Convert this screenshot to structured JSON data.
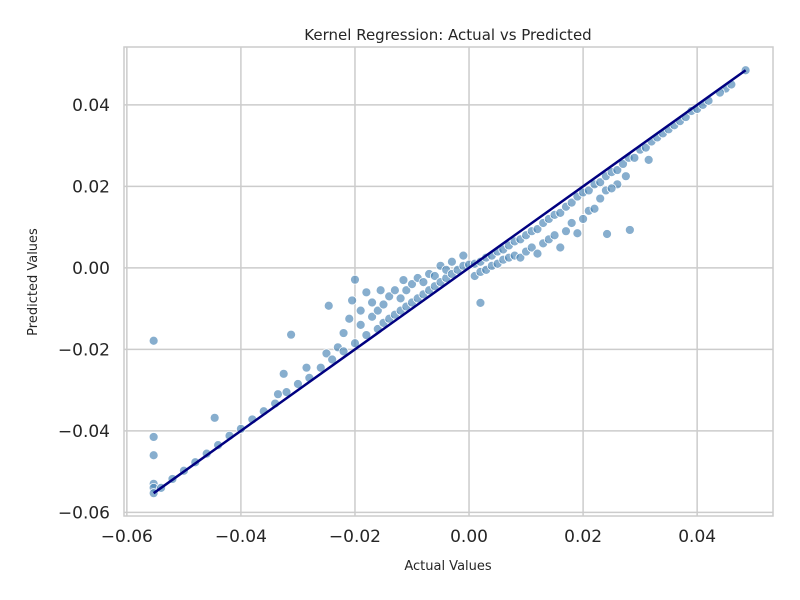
{
  "chart_data": {
    "type": "scatter",
    "title": "Kernel Regression: Actual vs Predicted",
    "xlabel": "Actual Values",
    "ylabel": "Predicted Values",
    "xlim": [
      -0.0605,
      0.0533
    ],
    "ylim": [
      -0.0609,
      0.0542
    ],
    "xticks": [
      -0.06,
      -0.04,
      -0.02,
      0.0,
      0.02,
      0.04
    ],
    "xtick_labels": [
      "−0.06",
      "−0.04",
      "−0.02",
      "0.00",
      "0.02",
      "0.04"
    ],
    "yticks": [
      -0.06,
      -0.04,
      -0.02,
      0.0,
      0.02,
      0.04
    ],
    "ytick_labels": [
      "−0.06",
      "−0.04",
      "−0.02",
      "0.00",
      "0.02",
      "0.04"
    ],
    "grid": true,
    "colors": {
      "points": "#4682b4",
      "line": "#000080",
      "grid": "#cccccc"
    },
    "reference_line": {
      "x": [
        -0.0553,
        0.0485
      ],
      "y": [
        -0.0553,
        0.0485
      ]
    },
    "points": [
      [
        -0.0553,
        -0.0179
      ],
      [
        -0.0553,
        -0.0415
      ],
      [
        -0.0553,
        -0.046
      ],
      [
        -0.0553,
        -0.053
      ],
      [
        -0.0553,
        -0.054
      ],
      [
        -0.0446,
        -0.0368
      ],
      [
        -0.0312,
        -0.0164
      ],
      [
        -0.0325,
        -0.026
      ],
      [
        -0.0246,
        -0.0093
      ],
      [
        -0.02,
        -0.0029
      ],
      [
        0.002,
        -0.0086
      ],
      [
        0.0282,
        0.0093
      ],
      [
        0.0242,
        0.0083
      ],
      [
        0.026,
        0.0205
      ],
      [
        0.0275,
        0.0225
      ],
      [
        0.0315,
        0.0265
      ],
      [
        0.045,
        0.044
      ],
      [
        -0.0553,
        -0.0553
      ],
      [
        -0.054,
        -0.054
      ],
      [
        -0.052,
        -0.0518
      ],
      [
        -0.05,
        -0.0498
      ],
      [
        -0.048,
        -0.0477
      ],
      [
        -0.046,
        -0.0456
      ],
      [
        -0.044,
        -0.0435
      ],
      [
        -0.042,
        -0.0412
      ],
      [
        -0.04,
        -0.0395
      ],
      [
        -0.038,
        -0.0372
      ],
      [
        -0.036,
        -0.0352
      ],
      [
        -0.034,
        -0.0333
      ],
      [
        -0.0335,
        -0.031
      ],
      [
        -0.032,
        -0.0305
      ],
      [
        -0.03,
        -0.0285
      ],
      [
        -0.028,
        -0.027
      ],
      [
        -0.0285,
        -0.0245
      ],
      [
        -0.026,
        -0.0245
      ],
      [
        -0.025,
        -0.021
      ],
      [
        -0.024,
        -0.0225
      ],
      [
        -0.023,
        -0.0195
      ],
      [
        -0.022,
        -0.0205
      ],
      [
        -0.022,
        -0.016
      ],
      [
        -0.021,
        -0.0125
      ],
      [
        -0.02,
        -0.0185
      ],
      [
        -0.0205,
        -0.008
      ],
      [
        -0.019,
        -0.014
      ],
      [
        -0.019,
        -0.0105
      ],
      [
        -0.018,
        -0.0165
      ],
      [
        -0.018,
        -0.006
      ],
      [
        -0.017,
        -0.012
      ],
      [
        -0.017,
        -0.0085
      ],
      [
        -0.016,
        -0.015
      ],
      [
        -0.016,
        -0.0105
      ],
      [
        -0.0155,
        -0.0055
      ],
      [
        -0.015,
        -0.0135
      ],
      [
        -0.015,
        -0.009
      ],
      [
        -0.014,
        -0.0125
      ],
      [
        -0.014,
        -0.007
      ],
      [
        -0.013,
        -0.0115
      ],
      [
        -0.013,
        -0.0055
      ],
      [
        -0.012,
        -0.0105
      ],
      [
        -0.012,
        -0.0075
      ],
      [
        -0.0115,
        -0.003
      ],
      [
        -0.011,
        -0.0095
      ],
      [
        -0.011,
        -0.0055
      ],
      [
        -0.01,
        -0.0085
      ],
      [
        -0.01,
        -0.004
      ],
      [
        -0.009,
        -0.0075
      ],
      [
        -0.009,
        -0.0025
      ],
      [
        -0.008,
        -0.0065
      ],
      [
        -0.008,
        -0.0035
      ],
      [
        -0.007,
        -0.0055
      ],
      [
        -0.007,
        -0.0015
      ],
      [
        -0.006,
        -0.0045
      ],
      [
        -0.006,
        -0.002
      ],
      [
        -0.005,
        -0.0035
      ],
      [
        -0.005,
        0.0005
      ],
      [
        -0.004,
        -0.0025
      ],
      [
        -0.004,
        -0.0005
      ],
      [
        -0.003,
        -0.0015
      ],
      [
        -0.003,
        0.0015
      ],
      [
        -0.002,
        -0.0005
      ],
      [
        -0.001,
        0.0005
      ],
      [
        -0.001,
        0.003
      ],
      [
        0.0,
        0.0008
      ],
      [
        0.001,
        0.001
      ],
      [
        0.001,
        -0.002
      ],
      [
        0.002,
        0.0015
      ],
      [
        0.002,
        -0.001
      ],
      [
        0.003,
        0.0025
      ],
      [
        0.003,
        -0.0005
      ],
      [
        0.004,
        0.003
      ],
      [
        0.004,
        0.0005
      ],
      [
        0.005,
        0.004
      ],
      [
        0.005,
        0.001
      ],
      [
        0.006,
        0.0045
      ],
      [
        0.006,
        0.002
      ],
      [
        0.007,
        0.0055
      ],
      [
        0.007,
        0.0025
      ],
      [
        0.008,
        0.0065
      ],
      [
        0.008,
        0.003
      ],
      [
        0.009,
        0.007
      ],
      [
        0.009,
        0.0025
      ],
      [
        0.01,
        0.008
      ],
      [
        0.01,
        0.004
      ],
      [
        0.011,
        0.009
      ],
      [
        0.011,
        0.005
      ],
      [
        0.012,
        0.0095
      ],
      [
        0.012,
        0.0035
      ],
      [
        0.013,
        0.011
      ],
      [
        0.013,
        0.006
      ],
      [
        0.014,
        0.012
      ],
      [
        0.014,
        0.007
      ],
      [
        0.015,
        0.013
      ],
      [
        0.015,
        0.008
      ],
      [
        0.016,
        0.0135
      ],
      [
        0.016,
        0.005
      ],
      [
        0.017,
        0.015
      ],
      [
        0.017,
        0.009
      ],
      [
        0.018,
        0.016
      ],
      [
        0.018,
        0.011
      ],
      [
        0.019,
        0.0175
      ],
      [
        0.019,
        0.0085
      ],
      [
        0.02,
        0.0185
      ],
      [
        0.02,
        0.012
      ],
      [
        0.021,
        0.019
      ],
      [
        0.021,
        0.014
      ],
      [
        0.022,
        0.0205
      ],
      [
        0.022,
        0.0145
      ],
      [
        0.023,
        0.021
      ],
      [
        0.023,
        0.017
      ],
      [
        0.024,
        0.0225
      ],
      [
        0.024,
        0.019
      ],
      [
        0.025,
        0.0235
      ],
      [
        0.025,
        0.0195
      ],
      [
        0.026,
        0.024
      ],
      [
        0.027,
        0.0255
      ],
      [
        0.028,
        0.027
      ],
      [
        0.029,
        0.027
      ],
      [
        0.03,
        0.029
      ],
      [
        0.031,
        0.0295
      ],
      [
        0.032,
        0.031
      ],
      [
        0.033,
        0.032
      ],
      [
        0.034,
        0.033
      ],
      [
        0.035,
        0.034
      ],
      [
        0.036,
        0.035
      ],
      [
        0.037,
        0.036
      ],
      [
        0.038,
        0.037
      ],
      [
        0.039,
        0.0385
      ],
      [
        0.04,
        0.039
      ],
      [
        0.041,
        0.04
      ],
      [
        0.042,
        0.041
      ],
      [
        0.044,
        0.043
      ],
      [
        0.046,
        0.045
      ],
      [
        0.0485,
        0.0485
      ]
    ]
  }
}
